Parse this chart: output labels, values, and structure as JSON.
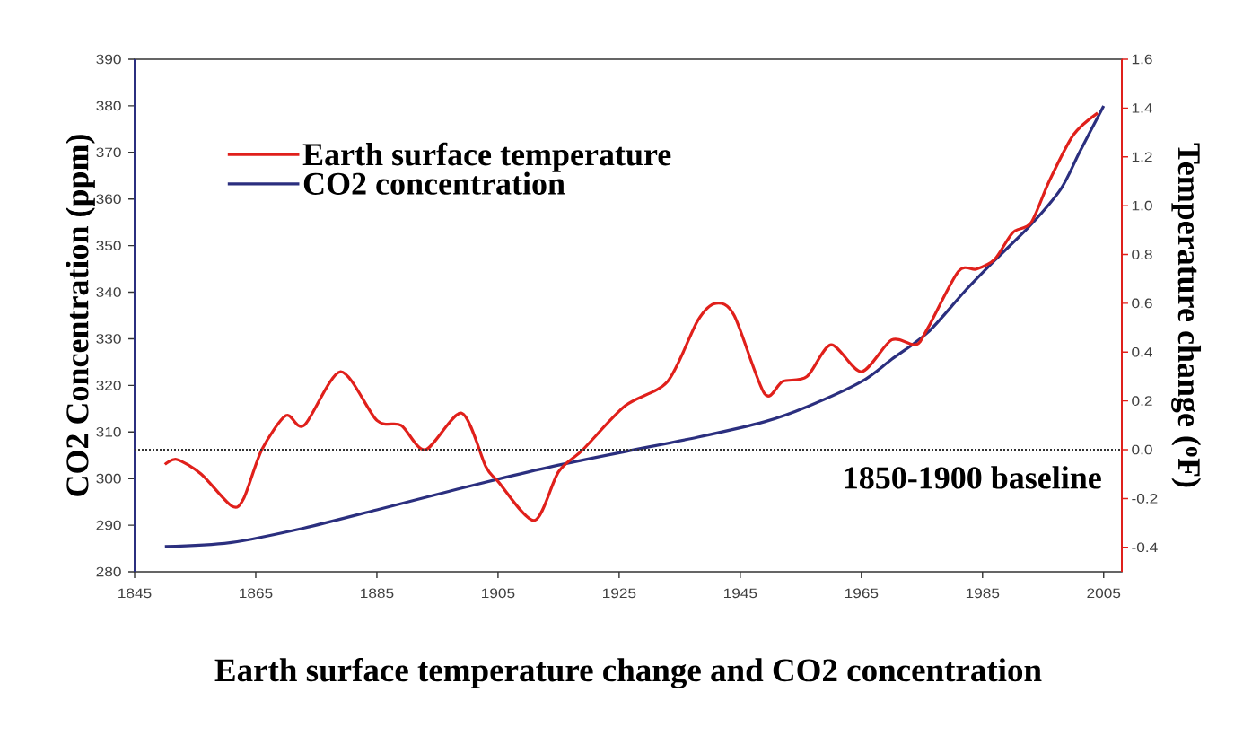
{
  "chart_data": {
    "type": "line",
    "title": "Earth surface temperature change and CO2 concentration",
    "ylabel": "CO2 Concentration (ppm)",
    "y2label": "Temperature change ($^{o}$F)",
    "xlim": [
      1845,
      2008
    ],
    "xticks": [
      1845,
      1865,
      1885,
      1905,
      1925,
      1945,
      1965,
      1985,
      2005
    ],
    "ylim": [
      280,
      390
    ],
    "yticks": [
      280,
      290,
      300,
      310,
      320,
      330,
      340,
      350,
      360,
      370,
      380,
      390
    ],
    "y2lim": [
      -0.5,
      1.6
    ],
    "y2ticks": [
      -0.4,
      -0.2,
      {
        "value": 0.0,
        "label": "0.0"
      },
      0.2,
      0.4,
      0.6,
      0.8,
      {
        "value": 1.0,
        "label": "1.0"
      },
      1.2,
      1.4,
      1.6
    ],
    "legend": "top left",
    "grid": false,
    "line_style": "solid",
    "ref_lines": [
      {
        "axis": "y2",
        "value": 0.0,
        "label": "1850-1900 baseline",
        "color": "#333333",
        "line_style": "dotted"
      }
    ],
    "series": [
      {
        "name": "Earth surface temperature",
        "color": "#e0201b",
        "axis": "y2",
        "x": [
          1850,
          1852,
          1856,
          1861,
          1863,
          1866,
          1870,
          1873,
          1879,
          1885,
          1889,
          1893,
          1899,
          1903,
          1905,
          1911,
          1915,
          1919,
          1926,
          1933,
          1938,
          1941,
          1944,
          1949,
          1952,
          1956,
          1960,
          1965,
          1970,
          1974,
          1976,
          1981,
          1984,
          1987,
          1990,
          1993,
          1996,
          2000,
          2004
        ],
        "values": [
          -0.06,
          -0.04,
          -0.1,
          -0.23,
          -0.2,
          0.0,
          0.14,
          0.1,
          0.32,
          0.12,
          0.1,
          0.0,
          0.15,
          -0.07,
          -0.13,
          -0.29,
          -0.09,
          0.0,
          0.18,
          0.28,
          0.53,
          0.6,
          0.55,
          0.23,
          0.28,
          0.3,
          0.43,
          0.32,
          0.45,
          0.43,
          0.5,
          0.73,
          0.74,
          0.78,
          0.89,
          0.93,
          1.1,
          1.29,
          1.38
        ]
      },
      {
        "name": "CO2 concentration",
        "color": "#2b2f7f",
        "x": [
          1850,
          1861,
          1873,
          1885,
          1897,
          1906,
          1915,
          1926,
          1938,
          1949,
          1956,
          1965,
          1970,
          1976,
          1982,
          1987,
          1993,
          1998,
          2001,
          2005
        ],
        "values": [
          285.4,
          286.3,
          289.4,
          293.3,
          297.3,
          300.2,
          302.9,
          305.8,
          308.9,
          312.2,
          315.4,
          320.8,
          325.6,
          331.4,
          340.1,
          346.8,
          354.5,
          362.3,
          370,
          380
        ]
      }
    ]
  }
}
